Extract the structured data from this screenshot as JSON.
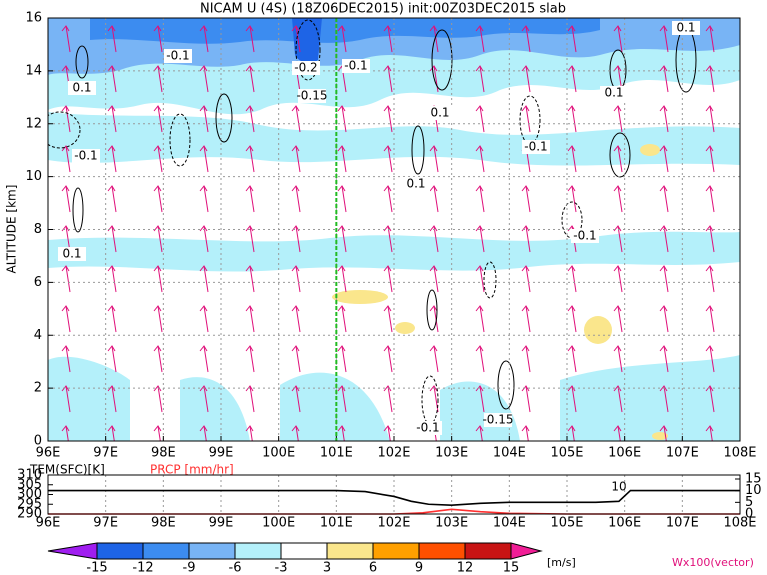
{
  "chart_data": {
    "type": "contour-section",
    "title": "NICAM U (4S) (18Z06DEC2015) init:00Z03DEC2015 slab",
    "y_label": "ALTITUDE [km]",
    "xlim": [
      96,
      108
    ],
    "xticks": [
      {
        "value": 96,
        "label": "96E"
      },
      {
        "value": 97,
        "label": "97E"
      },
      {
        "value": 98,
        "label": "98E"
      },
      {
        "value": 99,
        "label": "99E"
      },
      {
        "value": 100,
        "label": "100E"
      },
      {
        "value": 101,
        "label": "101E"
      },
      {
        "value": 102,
        "label": "102E"
      },
      {
        "value": 103,
        "label": "103E"
      },
      {
        "value": 104,
        "label": "104E"
      },
      {
        "value": 105,
        "label": "105E"
      },
      {
        "value": 106,
        "label": "106E"
      },
      {
        "value": 107,
        "label": "107E"
      },
      {
        "value": 108,
        "label": "108E"
      }
    ],
    "ylim": [
      0,
      16
    ],
    "yticks": [
      0,
      2,
      4,
      6,
      8,
      10,
      12,
      14,
      16
    ],
    "grid": true,
    "marker_x": 101,
    "contour_labels": [
      "-0.1",
      "0.1",
      "-0.2",
      "-0.15",
      "-0.1",
      "0.1",
      "-0.1",
      "0.1",
      "-0.1",
      "0.1",
      "0.1",
      "-0.1",
      "-0.15",
      "-0.1",
      "0.1"
    ],
    "colorbar": {
      "levels": [
        -15,
        -12,
        -9,
        -6,
        -3,
        3,
        6,
        9,
        12,
        15
      ],
      "colors": [
        "#a01ef0",
        "#1e64e6",
        "#3c8cf0",
        "#78b4f5",
        "#b4f0fa",
        "#ffffff",
        "#fae68c",
        "#ffa000",
        "#ff5000",
        "#c81414",
        "#f01e96"
      ],
      "unit": "[m/s]"
    },
    "vector_label": "Wx100(vector)",
    "annotation": "10",
    "surface": {
      "type": "line",
      "ylim": [
        290,
        310
      ],
      "yticks": [
        290,
        295,
        300,
        305,
        310
      ],
      "y2lim": [
        0,
        15
      ],
      "y2ticks": [
        0,
        5,
        10,
        15
      ],
      "series": [
        {
          "name": "TEM(SFC)[K]",
          "color": "#000000",
          "x": [
            96,
            97,
            98,
            99,
            100,
            101,
            101.5,
            102,
            102.3,
            102.6,
            103,
            103.5,
            104,
            104.5,
            105,
            105.5,
            105.9,
            106.1,
            106.5,
            107,
            108
          ],
          "values": [
            302,
            302,
            302,
            302,
            302,
            302,
            301.5,
            299,
            296.5,
            295,
            294.5,
            295.5,
            296,
            296,
            296,
            296,
            296.5,
            302,
            302,
            302,
            302
          ]
        },
        {
          "name": "PRCP [mm/hr]",
          "color": "#ff3030",
          "axis": "y2",
          "x": [
            96,
            101,
            102,
            102.5,
            103,
            103.5,
            104,
            105,
            106,
            108
          ],
          "values": [
            0,
            0,
            0,
            0.5,
            2,
            1,
            0.3,
            0,
            0,
            0
          ]
        }
      ]
    }
  }
}
